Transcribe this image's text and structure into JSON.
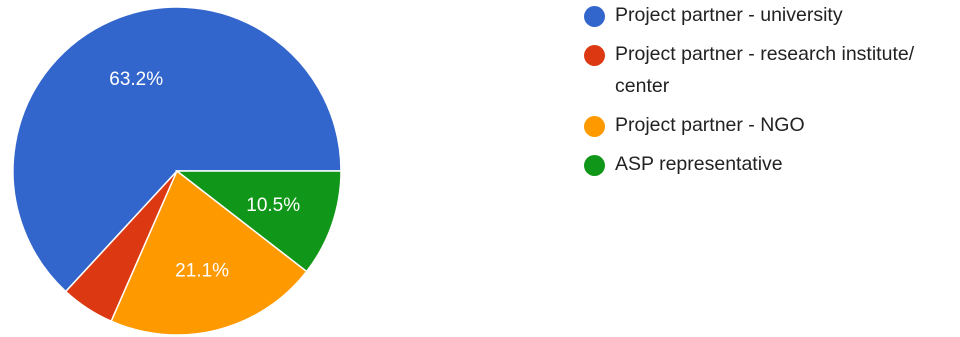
{
  "chart_data": {
    "type": "pie",
    "start_angle_deg": 0,
    "direction": "counterclockwise-from-3-oclock",
    "slices": [
      {
        "label": "Project partner - university",
        "value": 63.2,
        "color": "#3366cc",
        "data_label": "63.2%"
      },
      {
        "label": "Project partner - research institute/ center",
        "value": 5.3,
        "color": "#dc3912",
        "data_label": ""
      },
      {
        "label": "Project partner - NGO",
        "value": 21.1,
        "color": "#ff9900",
        "data_label": "21.1%"
      },
      {
        "label": "ASP representative",
        "value": 10.5,
        "color": "#109618",
        "data_label": "10.5%"
      }
    ],
    "legend_position": "right"
  }
}
